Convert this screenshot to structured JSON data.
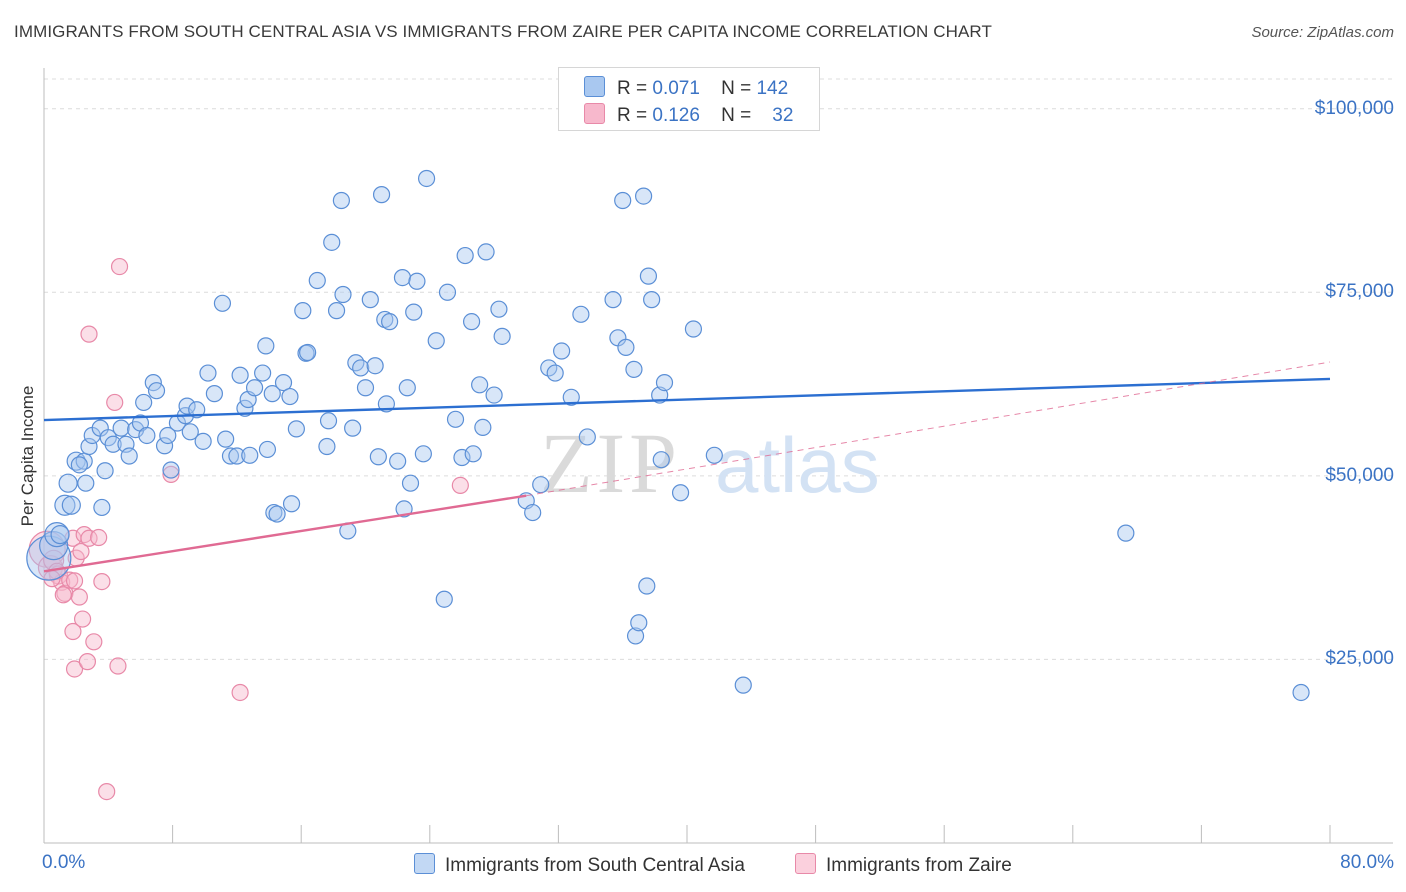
{
  "title": "IMMIGRANTS FROM SOUTH CENTRAL ASIA VS IMMIGRANTS FROM ZAIRE PER CAPITA INCOME CORRELATION CHART",
  "source": "Source: ZipAtlas.com",
  "watermark": {
    "zip": "ZIP",
    "atlas": "atlas"
  },
  "colors": {
    "blue_fill": "#a9c8f0",
    "blue_stroke": "#5b8fd6",
    "blue_line": "#2c6fd1",
    "pink_fill": "#f7b8cc",
    "pink_stroke": "#e889a8",
    "pink_line": "#e06a93",
    "axis_text": "#3b73c4",
    "grid": "#dcdcdc"
  },
  "legend": {
    "rows": [
      {
        "r_label": "R =",
        "r_value": "0.071",
        "n_label": "N =",
        "n_value": "142"
      },
      {
        "r_label": "R =",
        "r_value": "0.126",
        "n_label": "N =",
        "n_value": "32"
      }
    ]
  },
  "chart_data": {
    "type": "scatter",
    "title": "IMMIGRANTS FROM SOUTH CENTRAL ASIA VS IMMIGRANTS FROM ZAIRE PER CAPITA INCOME CORRELATION CHART",
    "xlabel": "",
    "ylabel": "Per Capita Income",
    "xlim": [
      0,
      80
    ],
    "ylim": [
      0,
      105000
    ],
    "x_tick_labels": {
      "min": "0.0%",
      "max": "80.0%"
    },
    "y_ticks": [
      {
        "value": 25000,
        "label": "$25,000"
      },
      {
        "value": 50000,
        "label": "$50,000"
      },
      {
        "value": 75000,
        "label": "$75,000"
      },
      {
        "value": 100000,
        "label": "$100,000"
      }
    ],
    "grid": true,
    "legend_position": "bottom",
    "series": [
      {
        "name": "Immigrants from South Central Asia",
        "color": "blue",
        "r": 0.071,
        "n": 142,
        "trend": {
          "x0": 0,
          "y0": 57600,
          "x1": 80,
          "y1": 63200,
          "style": "solid"
        },
        "points": [
          [
            0.3,
            38800,
            22
          ],
          [
            0.6,
            40500,
            14
          ],
          [
            0.8,
            42000,
            12
          ],
          [
            1.3,
            46000,
            10
          ],
          [
            1.7,
            46000,
            9
          ],
          [
            1.0,
            42000,
            9
          ],
          [
            1.5,
            49000,
            9
          ],
          [
            2.0,
            52000,
            9
          ],
          [
            2.5,
            52000,
            8
          ],
          [
            2.6,
            49000,
            8
          ],
          [
            2.2,
            51500,
            8
          ],
          [
            2.8,
            54000,
            8
          ],
          [
            3.0,
            55500,
            8
          ],
          [
            3.5,
            56500,
            8
          ],
          [
            3.6,
            45700,
            8
          ],
          [
            3.8,
            50700,
            8
          ],
          [
            4.0,
            55200,
            8
          ],
          [
            4.3,
            54300,
            8
          ],
          [
            4.8,
            56500,
            8
          ],
          [
            5.1,
            54300,
            8
          ],
          [
            5.3,
            52700,
            8
          ],
          [
            5.7,
            56300,
            8
          ],
          [
            6.0,
            57200,
            8
          ],
          [
            6.2,
            60000,
            8
          ],
          [
            6.4,
            55500,
            8
          ],
          [
            6.8,
            62700,
            8
          ],
          [
            7.0,
            61600,
            8
          ],
          [
            7.5,
            54100,
            8
          ],
          [
            7.7,
            55500,
            8
          ],
          [
            7.9,
            50800,
            8
          ],
          [
            8.3,
            57200,
            8
          ],
          [
            8.8,
            58200,
            8
          ],
          [
            8.9,
            59500,
            8
          ],
          [
            9.1,
            56000,
            8
          ],
          [
            9.5,
            59000,
            8
          ],
          [
            9.9,
            54700,
            8
          ],
          [
            10.2,
            64000,
            8
          ],
          [
            10.6,
            61200,
            8
          ],
          [
            11.1,
            73500,
            8
          ],
          [
            11.3,
            55000,
            8
          ],
          [
            11.6,
            52700,
            8
          ],
          [
            12.0,
            52700,
            8
          ],
          [
            12.2,
            63700,
            8
          ],
          [
            12.5,
            59200,
            8
          ],
          [
            12.7,
            60400,
            8
          ],
          [
            12.8,
            52800,
            8
          ],
          [
            13.1,
            62000,
            8
          ],
          [
            13.6,
            64000,
            8
          ],
          [
            13.8,
            67700,
            8
          ],
          [
            13.9,
            53600,
            8
          ],
          [
            14.2,
            61200,
            8
          ],
          [
            14.3,
            45000,
            8
          ],
          [
            14.5,
            44800,
            8
          ],
          [
            14.9,
            62700,
            8
          ],
          [
            15.3,
            60800,
            8
          ],
          [
            15.4,
            46200,
            8
          ],
          [
            15.7,
            56400,
            8
          ],
          [
            16.1,
            72500,
            8
          ],
          [
            16.3,
            66700,
            8
          ],
          [
            16.4,
            66800,
            8
          ],
          [
            17.0,
            76600,
            8
          ],
          [
            17.6,
            54000,
            8
          ],
          [
            17.7,
            57500,
            8
          ],
          [
            17.9,
            81800,
            8
          ],
          [
            18.2,
            72500,
            8
          ],
          [
            18.5,
            87500,
            8
          ],
          [
            18.6,
            74700,
            8
          ],
          [
            18.9,
            42500,
            8
          ],
          [
            19.2,
            56500,
            8
          ],
          [
            19.4,
            65400,
            8
          ],
          [
            19.7,
            64700,
            8
          ],
          [
            20.0,
            62000,
            8
          ],
          [
            20.3,
            74000,
            8
          ],
          [
            20.6,
            65000,
            8
          ],
          [
            20.8,
            52600,
            8
          ],
          [
            21.0,
            88300,
            8
          ],
          [
            21.2,
            71300,
            8
          ],
          [
            21.3,
            59800,
            8
          ],
          [
            21.5,
            71000,
            8
          ],
          [
            22.0,
            52000,
            8
          ],
          [
            22.3,
            77000,
            8
          ],
          [
            22.4,
            45500,
            8
          ],
          [
            22.6,
            62000,
            8
          ],
          [
            22.8,
            49000,
            8
          ],
          [
            23.0,
            72300,
            8
          ],
          [
            23.2,
            76500,
            8
          ],
          [
            23.6,
            53000,
            8
          ],
          [
            23.8,
            90500,
            8
          ],
          [
            24.4,
            68400,
            8
          ],
          [
            24.9,
            33200,
            8
          ],
          [
            25.1,
            75000,
            8
          ],
          [
            25.6,
            57700,
            8
          ],
          [
            26.0,
            52500,
            8
          ],
          [
            26.2,
            80000,
            8
          ],
          [
            26.6,
            71000,
            8
          ],
          [
            26.7,
            53000,
            8
          ],
          [
            27.1,
            62400,
            8
          ],
          [
            27.3,
            56600,
            8
          ],
          [
            27.5,
            80500,
            8
          ],
          [
            28.0,
            61000,
            8
          ],
          [
            28.3,
            72700,
            8
          ],
          [
            28.5,
            69000,
            8
          ],
          [
            30.0,
            46600,
            8
          ],
          [
            30.4,
            45000,
            8
          ],
          [
            30.9,
            48800,
            8
          ],
          [
            31.4,
            64700,
            8
          ],
          [
            31.8,
            64000,
            8
          ],
          [
            32.2,
            67000,
            8
          ],
          [
            32.8,
            60700,
            8
          ],
          [
            33.4,
            72000,
            8
          ],
          [
            33.8,
            55300,
            8
          ],
          [
            35.4,
            74000,
            8
          ],
          [
            35.7,
            68800,
            8
          ],
          [
            36.0,
            87500,
            8
          ],
          [
            37.3,
            88100,
            8
          ],
          [
            36.8,
            28200,
            8
          ],
          [
            36.2,
            67500,
            8
          ],
          [
            36.7,
            64500,
            8
          ],
          [
            37.6,
            77200,
            8
          ],
          [
            37.8,
            74000,
            8
          ],
          [
            37.0,
            30000,
            8
          ],
          [
            37.5,
            35000,
            8
          ],
          [
            38.3,
            61000,
            8
          ],
          [
            38.4,
            52200,
            8
          ],
          [
            38.6,
            62700,
            8
          ],
          [
            39.6,
            47700,
            8
          ],
          [
            40.4,
            70000,
            8
          ],
          [
            41.7,
            52800,
            8
          ],
          [
            43.5,
            21500,
            8
          ],
          [
            67.3,
            42200,
            8
          ],
          [
            78.2,
            20500,
            8
          ]
        ]
      },
      {
        "name": "Immigrants from Zaire",
        "color": "pink",
        "r": 0.126,
        "n": 32,
        "trend": {
          "x0": 0,
          "y0": 37000,
          "x1": 30,
          "y1": 47300,
          "style": "solid",
          "dashed_to": {
            "x": 80,
            "y": 65500
          }
        },
        "points": [
          [
            0.2,
            40000,
            18
          ],
          [
            0.4,
            37500,
            12
          ],
          [
            0.6,
            38500,
            10
          ],
          [
            0.9,
            36500,
            9
          ],
          [
            1.1,
            35500,
            8
          ],
          [
            1.3,
            34000,
            8
          ],
          [
            1.6,
            35800,
            8
          ],
          [
            1.9,
            35700,
            8
          ],
          [
            2.0,
            38800,
            8
          ],
          [
            2.2,
            33500,
            8
          ],
          [
            1.8,
            41500,
            8
          ],
          [
            2.3,
            39700,
            8
          ],
          [
            2.5,
            42000,
            8
          ],
          [
            2.8,
            41500,
            8
          ],
          [
            3.4,
            41600,
            8
          ],
          [
            3.6,
            35600,
            8
          ],
          [
            1.8,
            28800,
            8
          ],
          [
            2.4,
            30500,
            8
          ],
          [
            3.1,
            27400,
            8
          ],
          [
            1.9,
            23700,
            8
          ],
          [
            2.7,
            24700,
            8
          ],
          [
            4.6,
            24100,
            8
          ],
          [
            4.4,
            60000,
            8
          ],
          [
            4.7,
            78500,
            8
          ],
          [
            2.8,
            69300,
            8
          ],
          [
            7.9,
            50200,
            8
          ],
          [
            12.2,
            20500,
            8
          ],
          [
            3.9,
            7000,
            8
          ],
          [
            25.9,
            48700,
            8
          ],
          [
            0.8,
            37000,
            8
          ],
          [
            1.2,
            33800,
            8
          ],
          [
            0.5,
            36000,
            8
          ]
        ]
      }
    ]
  }
}
